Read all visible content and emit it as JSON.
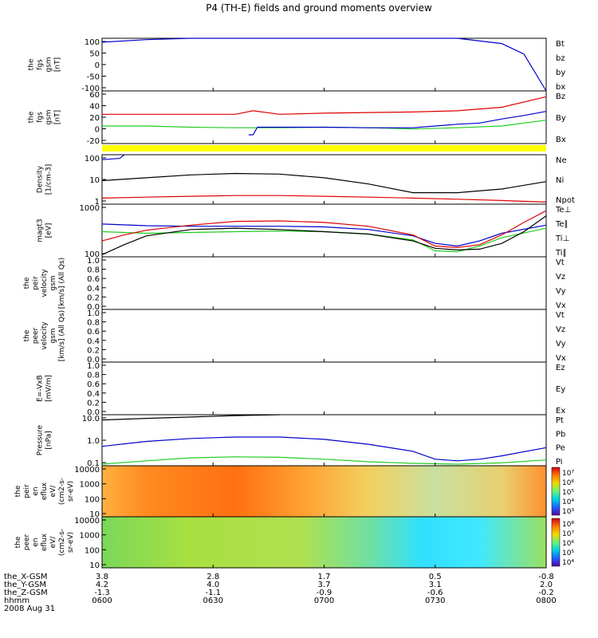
{
  "title": "P4 (TH-E) fields and ground moments overview",
  "colors": {
    "black": "#000000",
    "red": "#dd0000",
    "green": "#22cc22",
    "blue": "#0000cc",
    "yellow": "#ffff00"
  },
  "chart_data": [
    {
      "type": "line",
      "panel": "fgs_gsm_bt",
      "ylabel_lines": [
        "the",
        "fgs",
        "gsm",
        "[nT]"
      ],
      "yticks": [
        "100",
        "50",
        "0",
        "-50",
        "-100"
      ],
      "ylim": [
        -100,
        100
      ],
      "legend": [
        {
          "label": "Bt",
          "color": "black"
        },
        {
          "label": "bz",
          "color": "red"
        },
        {
          "label": "by",
          "color": "green"
        },
        {
          "label": "bx",
          "color": "blue"
        }
      ],
      "series": [
        {
          "name": "bx",
          "color": "blue",
          "x": [
            0,
            10,
            20,
            30,
            40,
            50,
            60,
            70,
            80,
            90,
            95,
            100
          ],
          "y": [
            85,
            95,
            103,
            108,
            110,
            110,
            110,
            110,
            108,
            80,
            40,
            -100
          ]
        }
      ]
    },
    {
      "type": "line",
      "panel": "fgs_gsm_components",
      "ylabel_lines": [
        "the",
        "fgs",
        "gsm",
        "[nT]"
      ],
      "yticks": [
        "60",
        "40",
        "20",
        "0",
        "-20"
      ],
      "ylim": [
        -30,
        60
      ],
      "legend": [
        {
          "label": "Bz",
          "color": "red"
        },
        {
          "label": "By",
          "color": "green"
        },
        {
          "label": "Bx",
          "color": "blue"
        }
      ],
      "series": [
        {
          "name": "Bz",
          "color": "red",
          "x": [
            0,
            10,
            20,
            30,
            34,
            40,
            50,
            60,
            70,
            80,
            90,
            100
          ],
          "y": [
            20,
            20,
            20,
            20,
            26,
            20,
            22,
            23,
            24,
            26,
            32,
            50
          ]
        },
        {
          "name": "By",
          "color": "green",
          "x": [
            0,
            10,
            20,
            30,
            40,
            50,
            60,
            70,
            80,
            90,
            100
          ],
          "y": [
            0,
            0,
            -2,
            -3,
            -3,
            -2,
            -3,
            -5,
            -3,
            0,
            10
          ]
        },
        {
          "name": "Bx",
          "color": "blue",
          "x": [
            33,
            34,
            35,
            40,
            50,
            60,
            70,
            75,
            80,
            85,
            90,
            95,
            100
          ],
          "y": [
            -15,
            -15,
            -2,
            -2,
            -2,
            -3,
            -3,
            0,
            3,
            5,
            12,
            18,
            25
          ]
        }
      ]
    },
    {
      "type": "line",
      "panel": "density",
      "ylog": true,
      "ylabel_lines": [
        "Density",
        "[1/cm-3]"
      ],
      "yticks": [
        "100",
        "10",
        "1"
      ],
      "ylim": [
        0.3,
        300
      ],
      "legend": [
        {
          "label": "Ne",
          "color": "red"
        },
        {
          "label": "Ni",
          "color": "black"
        },
        {
          "label": "Npot",
          "color": "blue"
        }
      ],
      "series": [
        {
          "name": "Ni",
          "color": "black",
          "x": [
            0,
            10,
            20,
            30,
            40,
            50,
            60,
            70,
            80,
            90,
            100
          ],
          "y": [
            8,
            12,
            18,
            22,
            20,
            12,
            5,
            1.5,
            1.5,
            2.5,
            7
          ]
        },
        {
          "name": "Ne",
          "color": "red",
          "x": [
            0,
            10,
            20,
            30,
            40,
            50,
            60,
            70,
            80,
            90,
            100
          ],
          "y": [
            0.7,
            0.8,
            0.9,
            1.0,
            1.0,
            0.9,
            0.8,
            0.7,
            0.6,
            0.5,
            0.4
          ]
        },
        {
          "name": "Npot",
          "color": "blue",
          "x": [
            0,
            4,
            5
          ],
          "y": [
            150,
            180,
            300
          ]
        }
      ]
    },
    {
      "type": "line",
      "panel": "temperature",
      "ylog": true,
      "ylabel_lines": [
        "magt3",
        "[eV]"
      ],
      "yticks": [
        "1000",
        "100"
      ],
      "ylim": [
        100,
        1000
      ],
      "legend": [
        {
          "label": "Te⊥",
          "color": "red"
        },
        {
          "label": "Te∥",
          "color": "black"
        },
        {
          "label": "Ti⊥",
          "color": "blue"
        },
        {
          "label": "Ti∥",
          "color": "green"
        }
      ],
      "series": [
        {
          "name": "Ti⊥",
          "color": "blue",
          "x": [
            0,
            10,
            20,
            30,
            40,
            50,
            60,
            70,
            75,
            80,
            85,
            90,
            100
          ],
          "y": [
            420,
            390,
            380,
            380,
            380,
            370,
            330,
            250,
            180,
            160,
            200,
            280,
            400
          ]
        },
        {
          "name": "Ti∥",
          "color": "green",
          "x": [
            0,
            10,
            20,
            30,
            40,
            50,
            60,
            70,
            75,
            80,
            85,
            90,
            100
          ],
          "y": [
            300,
            280,
            290,
            300,
            310,
            300,
            270,
            210,
            130,
            125,
            160,
            230,
            350
          ]
        },
        {
          "name": "Te⊥",
          "color": "red",
          "x": [
            0,
            5,
            10,
            20,
            30,
            40,
            50,
            60,
            70,
            75,
            80,
            85,
            90,
            95,
            100
          ],
          "y": [
            200,
            260,
            320,
            400,
            470,
            480,
            450,
            380,
            260,
            160,
            150,
            170,
            260,
            450,
            750
          ]
        },
        {
          "name": "Te∥",
          "color": "black",
          "x": [
            0,
            5,
            10,
            20,
            30,
            40,
            50,
            60,
            70,
            75,
            80,
            85,
            90,
            95,
            100
          ],
          "y": [
            110,
            170,
            250,
            330,
            350,
            330,
            300,
            270,
            200,
            145,
            135,
            140,
            180,
            300,
            600
          ]
        }
      ]
    },
    {
      "type": "line",
      "panel": "peir_velocity",
      "ylabel_lines": [
        "the",
        "peir",
        "velocity",
        "gsm",
        "[km/s] (All Qs)"
      ],
      "yticks": [
        "1.0",
        "0.8",
        "0.6",
        "0.4",
        "0.2",
        "0.0"
      ],
      "ylim": [
        0,
        1
      ],
      "legend": [
        {
          "label": "Vt",
          "color": "black"
        },
        {
          "label": "Vz",
          "color": "red"
        },
        {
          "label": "Vy",
          "color": "green"
        },
        {
          "label": "Vx",
          "color": "blue"
        }
      ],
      "series": []
    },
    {
      "type": "line",
      "panel": "peer_velocity",
      "ylabel_lines": [
        "the",
        "peer",
        "velocity",
        "gsm",
        "[km/s] (All Qs)"
      ],
      "yticks": [
        "1.0",
        "0.8",
        "0.6",
        "0.4",
        "0.2",
        "0.0"
      ],
      "ylim": [
        0,
        1
      ],
      "legend": [
        {
          "label": "Vt",
          "color": "black"
        },
        {
          "label": "Vz",
          "color": "red"
        },
        {
          "label": "Vy",
          "color": "green"
        },
        {
          "label": "Vx",
          "color": "blue"
        }
      ],
      "series": []
    },
    {
      "type": "line",
      "panel": "e_field",
      "ylabel_lines": [
        "E=-VxB",
        "[mV/m]"
      ],
      "yticks": [
        "1.0",
        "0.8",
        "0.6",
        "0.4",
        "0.2",
        "0.0"
      ],
      "ylim": [
        0,
        1
      ],
      "legend": [
        {
          "label": "Ez",
          "color": "red"
        },
        {
          "label": "Ey",
          "color": "green"
        },
        {
          "label": "Ex",
          "color": "blue"
        }
      ],
      "series": []
    },
    {
      "type": "line",
      "panel": "pressure",
      "ylog": true,
      "ylabel_lines": [
        "Pressure",
        "[nPa]"
      ],
      "yticks": [
        "10.0",
        "1.0",
        "0.1"
      ],
      "ylim": [
        0.02,
        25
      ],
      "legend": [
        {
          "label": "Pt",
          "color": "black"
        },
        {
          "label": "Pb",
          "color": "red"
        },
        {
          "label": "Pe",
          "color": "green"
        },
        {
          "label": "Pi",
          "color": "blue"
        }
      ],
      "series": [
        {
          "name": "Pt",
          "color": "black",
          "x": [
            0,
            10,
            20,
            30,
            40
          ],
          "y": [
            12,
            15,
            18,
            22,
            26
          ]
        },
        {
          "name": "Pi",
          "color": "blue",
          "x": [
            0,
            10,
            20,
            30,
            40,
            50,
            60,
            70,
            75,
            80,
            85,
            90,
            100
          ],
          "y": [
            0.3,
            0.6,
            0.9,
            1.1,
            1.1,
            0.8,
            0.4,
            0.15,
            0.05,
            0.04,
            0.05,
            0.08,
            0.25
          ]
        },
        {
          "name": "Pe",
          "color": "green",
          "x": [
            0,
            10,
            20,
            30,
            40,
            50,
            60,
            70,
            80,
            90,
            100
          ],
          "y": [
            0.025,
            0.04,
            0.06,
            0.07,
            0.065,
            0.05,
            0.035,
            0.028,
            0.025,
            0.03,
            0.045
          ]
        }
      ]
    },
    {
      "type": "heatmap",
      "panel": "peir_eflux",
      "ylabel_lines": [
        "the",
        "peir",
        "en",
        "eflux",
        "eV/",
        "(cm2-s-",
        "sr-eV)"
      ],
      "yticks": [
        "10000",
        "1000",
        "100",
        "10"
      ],
      "colorbar_ticks": [
        "10⁷",
        "10⁶",
        "10⁵",
        "10⁴",
        "10³"
      ],
      "colorbar_colors": [
        "#d0001a",
        "#ff7a00",
        "#f0d800",
        "#6cf07a",
        "#00d0e0",
        "#2060ff",
        "#5a00a0"
      ]
    },
    {
      "type": "heatmap",
      "panel": "peer_eflux",
      "ylabel_lines": [
        "the",
        "peer",
        "en",
        "eflux",
        "eV/",
        "(cm2-s-",
        "sr-eV)"
      ],
      "yticks": [
        "10000",
        "1000",
        "100",
        "10"
      ],
      "colorbar_ticks": [
        "10⁸",
        "10⁷",
        "10⁶",
        "10⁵",
        "10⁴"
      ],
      "colorbar_colors": [
        "#d0001a",
        "#ff7a00",
        "#f0d800",
        "#6cf07a",
        "#00d0e0",
        "#2060ff",
        "#5a00a0"
      ]
    }
  ],
  "xaxis": {
    "rows": [
      {
        "label": "the_X-GSM",
        "values": [
          "3.8",
          "2.8",
          "1.7",
          "0.5",
          "-0.8"
        ]
      },
      {
        "label": "the_Y-GSM",
        "values": [
          "4.2",
          "4.0",
          "3.7",
          "3.1",
          "2.0"
        ]
      },
      {
        "label": "the_Z-GSM",
        "values": [
          "-1.3",
          "-1.1",
          "-0.9",
          "-0.6",
          "-0.2"
        ]
      },
      {
        "label": "hhmm",
        "values": [
          "0600",
          "0630",
          "0700",
          "0730",
          "0800"
        ]
      }
    ],
    "date": "2008 Aug 31"
  }
}
